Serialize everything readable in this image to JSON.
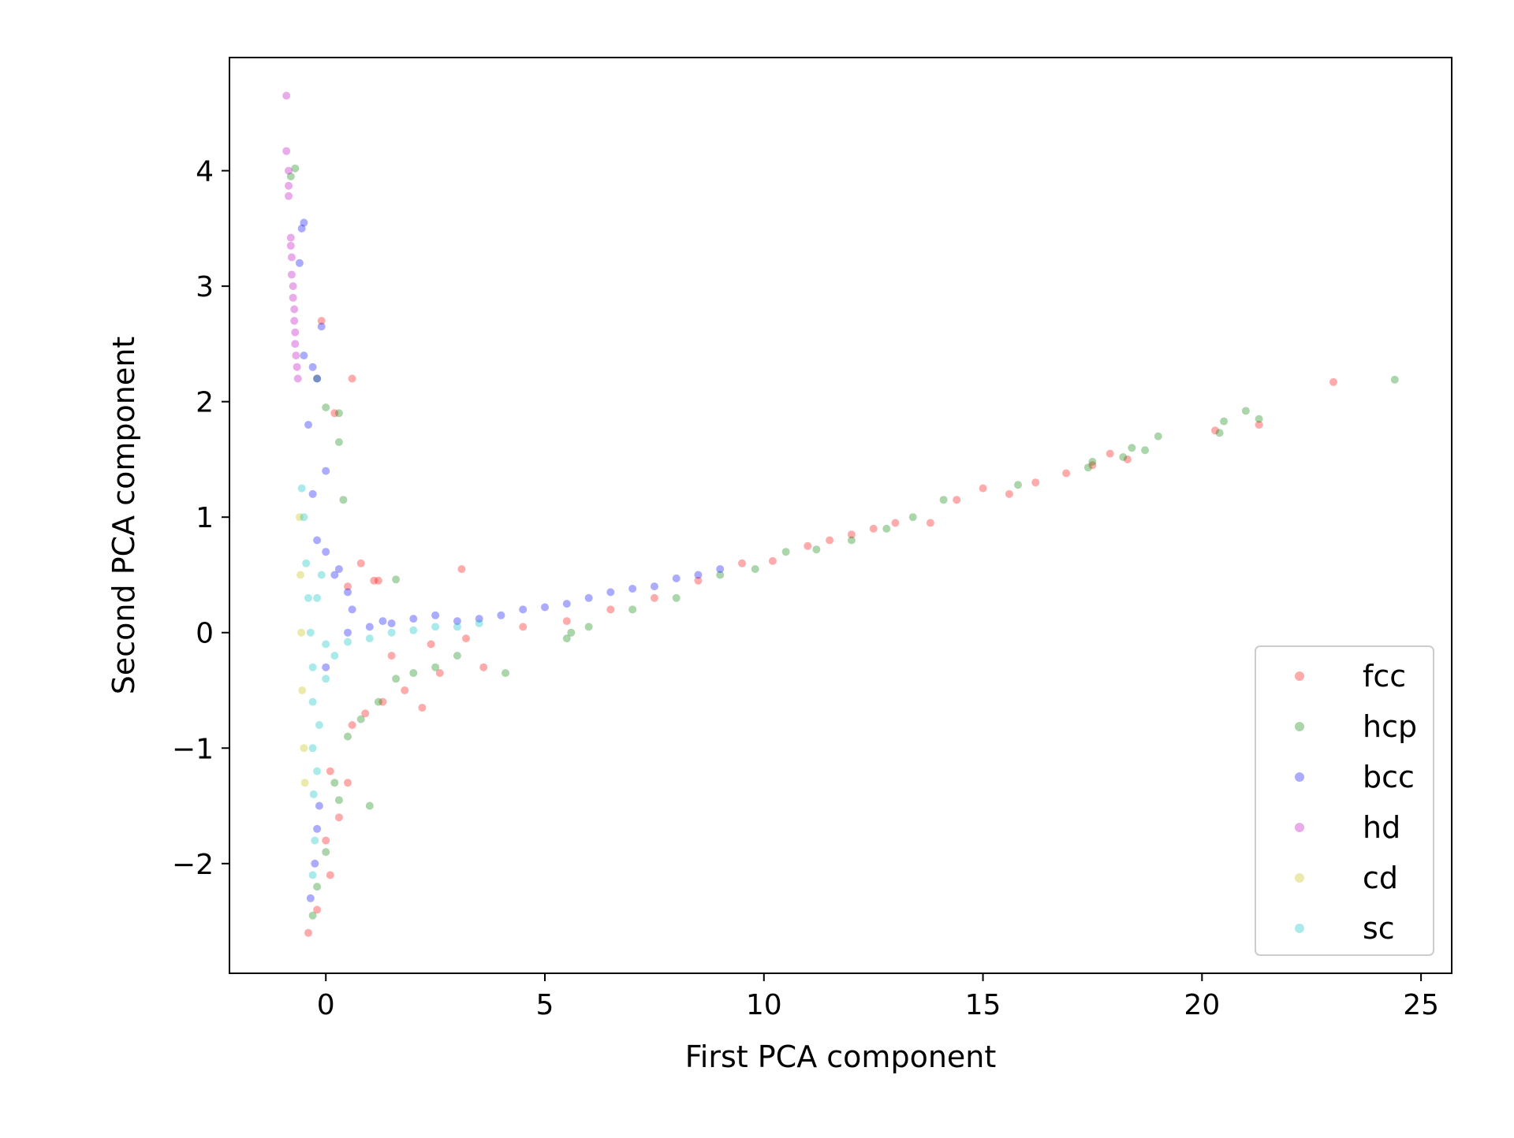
{
  "chart_data": {
    "type": "scatter",
    "title": "",
    "xlabel": "First PCA component",
    "ylabel": "Second PCA component",
    "xlim": [
      -2.2,
      25.7
    ],
    "ylim": [
      -2.95,
      4.98
    ],
    "xticks": [
      0,
      5,
      10,
      15,
      20,
      25
    ],
    "yticks": [
      -2,
      -1,
      0,
      1,
      2,
      3,
      4
    ],
    "xtick_labels": [
      "0",
      "5",
      "10",
      "15",
      "20",
      "25"
    ],
    "ytick_labels": [
      "−2",
      "−1",
      "0",
      "1",
      "2",
      "3",
      "4"
    ],
    "grid": false,
    "legend_position": "lower-right",
    "series": [
      {
        "name": "fcc",
        "color": "#ff0000",
        "points": [
          [
            -0.4,
            -2.6
          ],
          [
            -0.2,
            -2.4
          ],
          [
            0.1,
            -2.1
          ],
          [
            0.0,
            -1.8
          ],
          [
            0.3,
            -1.6
          ],
          [
            0.5,
            -1.3
          ],
          [
            0.1,
            -1.2
          ],
          [
            0.6,
            -0.8
          ],
          [
            0.9,
            -0.7
          ],
          [
            1.3,
            -0.6
          ],
          [
            1.8,
            -0.5
          ],
          [
            2.2,
            -0.65
          ],
          [
            2.6,
            -0.35
          ],
          [
            3.6,
            -0.3
          ],
          [
            0.5,
            0.4
          ],
          [
            0.8,
            0.6
          ],
          [
            1.1,
            0.45
          ],
          [
            1.2,
            0.45
          ],
          [
            3.1,
            0.55
          ],
          [
            0.2,
            1.9
          ],
          [
            0.6,
            2.2
          ],
          [
            -0.1,
            2.7
          ],
          [
            1.5,
            -0.2
          ],
          [
            2.4,
            -0.1
          ],
          [
            3.2,
            -0.05
          ],
          [
            4.5,
            0.05
          ],
          [
            5.5,
            0.1
          ],
          [
            6.5,
            0.2
          ],
          [
            7.5,
            0.3
          ],
          [
            8.5,
            0.45
          ],
          [
            9.5,
            0.6
          ],
          [
            10.2,
            0.62
          ],
          [
            11.0,
            0.75
          ],
          [
            11.5,
            0.8
          ],
          [
            12.0,
            0.85
          ],
          [
            12.5,
            0.9
          ],
          [
            13.0,
            0.95
          ],
          [
            13.8,
            0.95
          ],
          [
            14.4,
            1.15
          ],
          [
            15.0,
            1.25
          ],
          [
            15.6,
            1.2
          ],
          [
            16.2,
            1.3
          ],
          [
            16.9,
            1.38
          ],
          [
            17.5,
            1.45
          ],
          [
            17.9,
            1.55
          ],
          [
            18.3,
            1.5
          ],
          [
            20.3,
            1.75
          ],
          [
            21.3,
            1.8
          ],
          [
            23.0,
            2.17
          ]
        ]
      },
      {
        "name": "hcp",
        "color": "#008000",
        "points": [
          [
            -0.3,
            -2.45
          ],
          [
            -0.2,
            -2.2
          ],
          [
            0.0,
            -1.9
          ],
          [
            0.3,
            -1.45
          ],
          [
            1.0,
            -1.5
          ],
          [
            0.2,
            -1.3
          ],
          [
            0.5,
            -0.9
          ],
          [
            0.8,
            -0.75
          ],
          [
            1.2,
            -0.6
          ],
          [
            1.6,
            -0.4
          ],
          [
            2.0,
            -0.35
          ],
          [
            2.5,
            -0.3
          ],
          [
            3.0,
            -0.2
          ],
          [
            4.1,
            -0.35
          ],
          [
            5.5,
            -0.05
          ],
          [
            5.6,
            0.0
          ],
          [
            6.0,
            0.05
          ],
          [
            7.0,
            0.2
          ],
          [
            8.0,
            0.3
          ],
          [
            9.0,
            0.5
          ],
          [
            9.8,
            0.55
          ],
          [
            10.5,
            0.7
          ],
          [
            11.2,
            0.72
          ],
          [
            12.0,
            0.8
          ],
          [
            12.8,
            0.9
          ],
          [
            13.4,
            1.0
          ],
          [
            14.1,
            1.15
          ],
          [
            15.8,
            1.28
          ],
          [
            17.4,
            1.43
          ],
          [
            17.5,
            1.48
          ],
          [
            18.2,
            1.52
          ],
          [
            18.4,
            1.6
          ],
          [
            18.7,
            1.58
          ],
          [
            19.0,
            1.7
          ],
          [
            20.4,
            1.73
          ],
          [
            20.5,
            1.83
          ],
          [
            21.0,
            1.92
          ],
          [
            21.3,
            1.85
          ],
          [
            24.4,
            2.19
          ],
          [
            0.3,
            1.65
          ],
          [
            0.0,
            1.95
          ],
          [
            0.3,
            1.9
          ],
          [
            0.4,
            1.15
          ],
          [
            -0.7,
            4.02
          ],
          [
            -0.8,
            3.95
          ],
          [
            1.6,
            0.46
          ],
          [
            -0.2,
            2.2
          ]
        ]
      },
      {
        "name": "bcc",
        "color": "#0000ff",
        "points": [
          [
            -0.35,
            -2.3
          ],
          [
            -0.25,
            -2.0
          ],
          [
            -0.2,
            -1.7
          ],
          [
            -0.15,
            -1.5
          ],
          [
            0.0,
            -0.3
          ],
          [
            0.5,
            0.0
          ],
          [
            1.0,
            0.05
          ],
          [
            1.5,
            0.08
          ],
          [
            2.0,
            0.12
          ],
          [
            2.5,
            0.15
          ],
          [
            3.0,
            0.1
          ],
          [
            3.5,
            0.12
          ],
          [
            4.0,
            0.15
          ],
          [
            4.5,
            0.2
          ],
          [
            5.0,
            0.22
          ],
          [
            5.5,
            0.25
          ],
          [
            6.0,
            0.3
          ],
          [
            6.5,
            0.35
          ],
          [
            7.0,
            0.38
          ],
          [
            7.5,
            0.4
          ],
          [
            8.0,
            0.47
          ],
          [
            8.5,
            0.5
          ],
          [
            9.0,
            0.55
          ],
          [
            -0.2,
            0.8
          ],
          [
            0.0,
            0.7
          ],
          [
            0.2,
            0.5
          ],
          [
            0.5,
            0.35
          ],
          [
            -0.3,
            1.2
          ],
          [
            0.0,
            1.4
          ],
          [
            -0.4,
            1.8
          ],
          [
            -0.2,
            2.2
          ],
          [
            -0.5,
            2.4
          ],
          [
            -0.3,
            2.3
          ],
          [
            -0.1,
            2.65
          ],
          [
            -0.55,
            3.5
          ],
          [
            -0.5,
            3.55
          ],
          [
            0.3,
            0.55
          ],
          [
            0.6,
            0.2
          ],
          [
            1.3,
            0.1
          ],
          [
            -0.6,
            3.2
          ]
        ]
      },
      {
        "name": "hd",
        "color": "#bf00bf",
        "points": [
          [
            -0.9,
            4.65
          ],
          [
            -0.9,
            4.17
          ],
          [
            -0.85,
            4.0
          ],
          [
            -0.85,
            3.87
          ],
          [
            -0.85,
            3.78
          ],
          [
            -0.8,
            3.42
          ],
          [
            -0.8,
            3.35
          ],
          [
            -0.78,
            3.25
          ],
          [
            -0.78,
            3.1
          ],
          [
            -0.75,
            3.0
          ],
          [
            -0.75,
            2.9
          ],
          [
            -0.72,
            2.8
          ],
          [
            -0.72,
            2.7
          ],
          [
            -0.7,
            2.6
          ],
          [
            -0.7,
            2.5
          ],
          [
            -0.68,
            2.4
          ],
          [
            -0.66,
            2.3
          ],
          [
            -0.64,
            2.2
          ]
        ]
      },
      {
        "name": "cd",
        "color": "#bfbf00",
        "points": [
          [
            -0.6,
            1.0
          ],
          [
            -0.58,
            0.5
          ],
          [
            -0.56,
            0.0
          ],
          [
            -0.54,
            -0.5
          ],
          [
            -0.5,
            -1.0
          ],
          [
            -0.48,
            -1.3
          ]
        ]
      },
      {
        "name": "sc",
        "color": "#00bfbf",
        "points": [
          [
            -0.55,
            1.25
          ],
          [
            -0.5,
            1.0
          ],
          [
            -0.45,
            0.6
          ],
          [
            -0.4,
            0.3
          ],
          [
            -0.35,
            0.0
          ],
          [
            -0.3,
            -0.3
          ],
          [
            -0.3,
            -0.6
          ],
          [
            -0.3,
            -1.0
          ],
          [
            -0.28,
            -1.4
          ],
          [
            -0.25,
            -1.8
          ],
          [
            -0.3,
            -2.1
          ],
          [
            0.0,
            -0.1
          ],
          [
            0.5,
            -0.08
          ],
          [
            1.0,
            -0.05
          ],
          [
            1.5,
            0.0
          ],
          [
            2.0,
            0.02
          ],
          [
            2.5,
            0.05
          ],
          [
            3.0,
            0.05
          ],
          [
            3.5,
            0.08
          ],
          [
            -0.2,
            0.3
          ],
          [
            0.0,
            -0.4
          ],
          [
            -0.1,
            0.5
          ],
          [
            0.2,
            -0.2
          ],
          [
            -0.15,
            -0.8
          ],
          [
            -0.2,
            -1.2
          ]
        ]
      }
    ]
  }
}
